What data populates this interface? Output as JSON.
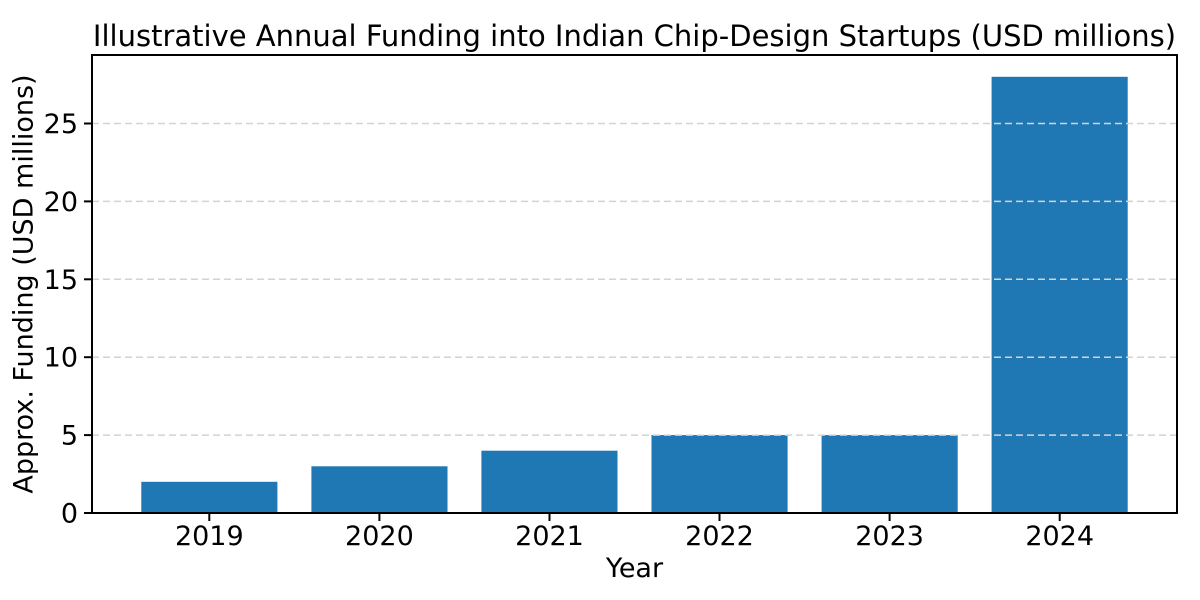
{
  "chart_data": {
    "type": "bar",
    "title": "Illustrative Annual Funding into Indian Chip-Design Startups (USD millions)",
    "xlabel": "Year",
    "ylabel": "Approx. Funding (USD millions)",
    "categories": [
      "2019",
      "2020",
      "2021",
      "2022",
      "2023",
      "2024"
    ],
    "values": [
      2,
      3,
      4,
      5,
      5,
      28
    ],
    "yticks": [
      0,
      5,
      10,
      15,
      20,
      25
    ],
    "ylim": [
      0,
      29.4
    ],
    "grid": "horizontal-dashed-over-bars",
    "legend": "none",
    "colors": {
      "bar": "#1f77b4",
      "grid": "#d3d3d3",
      "text": "#000000",
      "background": "#ffffff"
    }
  }
}
